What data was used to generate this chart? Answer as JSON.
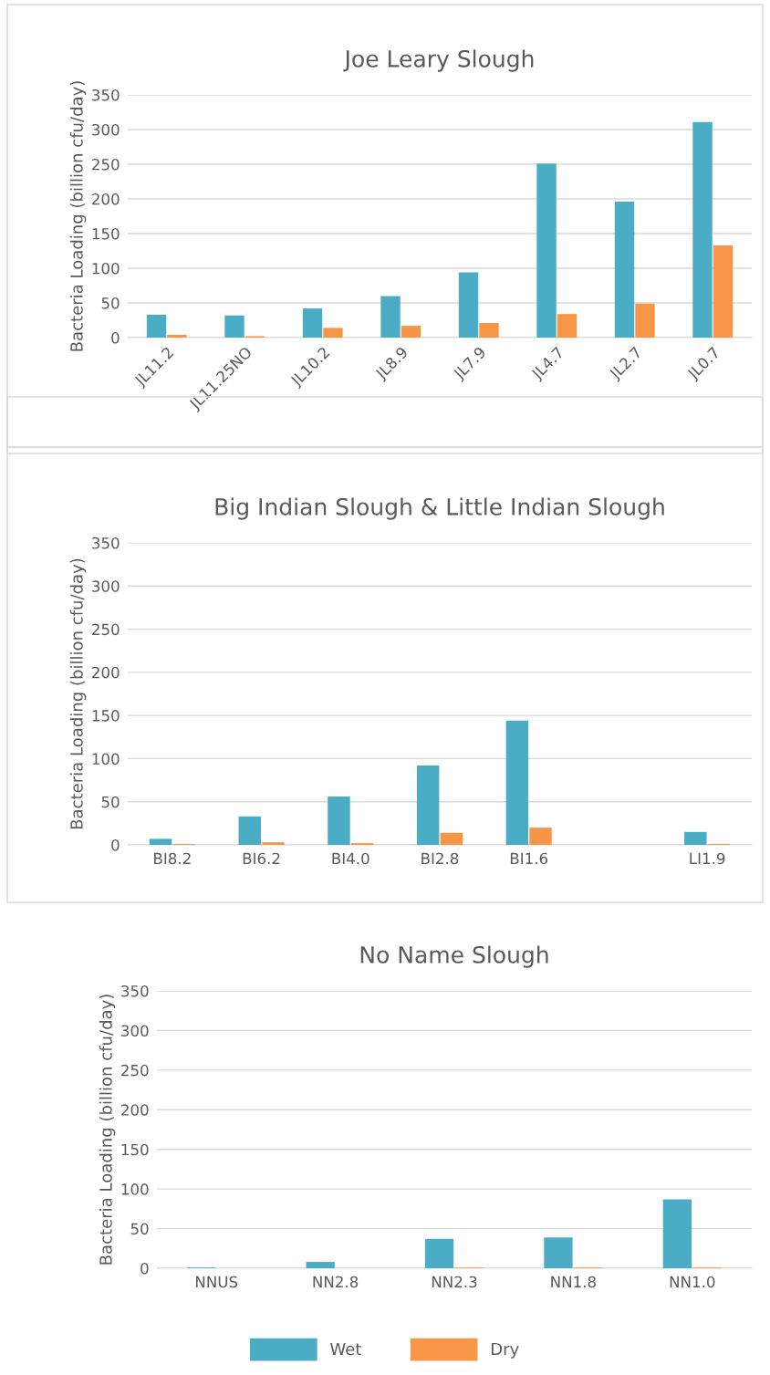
{
  "chart_data": [
    {
      "type": "bar",
      "title": "Joe Leary Slough",
      "ylabel": "Bacteria Loading (billion cfu/day)",
      "categories": [
        "JL11.2",
        "JL11.25NO",
        "JL10.2",
        "JL8.9",
        "JL7.9",
        "JL4.7",
        "JL2.7",
        "JL0.7"
      ],
      "series": [
        {
          "name": "Wet",
          "color": "#4bacc6",
          "values": [
            33,
            32,
            42,
            60,
            94,
            251,
            196,
            311
          ]
        },
        {
          "name": "Dry",
          "color": "#f79646",
          "values": [
            4,
            2,
            14,
            17,
            21,
            34,
            49,
            133
          ]
        }
      ],
      "ylim": [
        0,
        350
      ],
      "yticks": [
        0,
        50,
        100,
        150,
        200,
        250,
        300,
        350
      ],
      "grid": "y",
      "legend": "bottom"
    },
    {
      "type": "bar",
      "title": "Big Indian Slough & Little Indian Slough",
      "ylabel": "Bacteria Loading (billion cfu/day)",
      "categories": [
        "BI8.2",
        "BI6.2",
        "BI4.0",
        "BI2.8",
        "BI1.6",
        null,
        "LI1.9"
      ],
      "series": [
        {
          "color": "#4bacc6",
          "values": [
            7,
            33,
            56,
            92,
            144,
            null,
            15
          ]
        },
        {
          "color": "#f79646",
          "values": [
            1,
            3,
            2,
            14,
            20,
            null,
            1
          ]
        }
      ],
      "ylim": [
        0,
        350
      ],
      "yticks": [
        0,
        50,
        100,
        150,
        200,
        250,
        300,
        350
      ],
      "grid": "y"
    },
    {
      "type": "bar",
      "title": "No Name Slough",
      "ylabel": "Bacteria Loading (billion cfu/day)",
      "categories": [
        "NNUS",
        "NN2.8",
        "NN2.3",
        "NN1.8",
        "NN1.0"
      ],
      "series": [
        {
          "color": "#4bacc6",
          "values": [
            1,
            8,
            37,
            39,
            87
          ]
        },
        {
          "color": "#f79646",
          "values": [
            0,
            0,
            1,
            1,
            1
          ]
        }
      ],
      "ylim": [
        0,
        350
      ],
      "yticks": [
        0,
        50,
        100,
        150,
        200,
        250,
        300,
        350
      ],
      "grid": "y"
    }
  ]
}
